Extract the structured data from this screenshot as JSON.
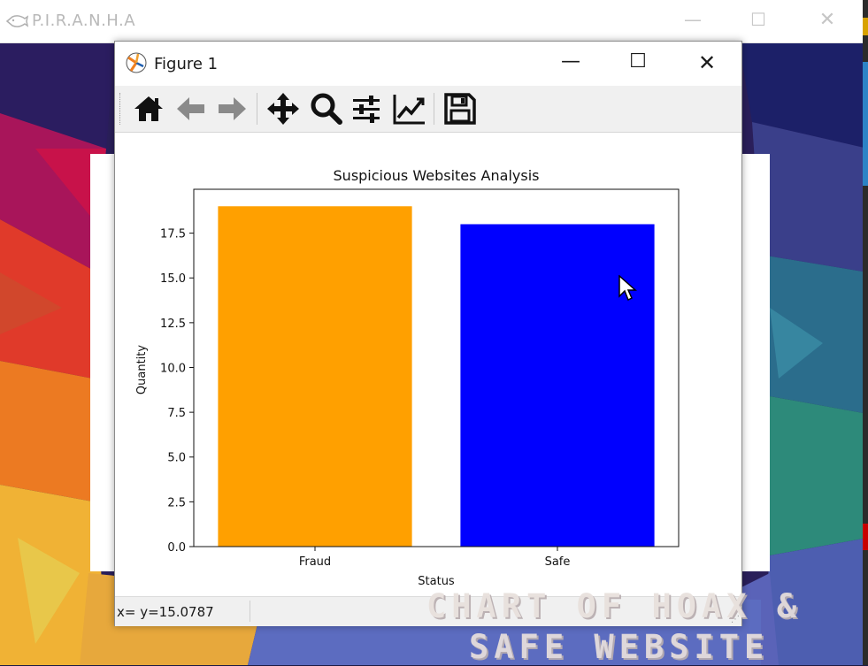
{
  "app": {
    "title": "P.I.R.A.N.H.A",
    "minimize_glyph": "—",
    "maximize_glyph": "☐",
    "close_glyph": "✕"
  },
  "figure_window": {
    "title": "Figure 1",
    "minimize_glyph": "—",
    "maximize_glyph": "☐",
    "close_glyph": "✕",
    "toolbar": [
      {
        "name": "home-icon",
        "tooltip": "Home"
      },
      {
        "name": "back-arrow-icon",
        "tooltip": "Back"
      },
      {
        "name": "forward-arrow-icon",
        "tooltip": "Forward"
      },
      {
        "name": "pan-icon",
        "tooltip": "Pan"
      },
      {
        "name": "zoom-icon",
        "tooltip": "Zoom"
      },
      {
        "name": "subplots-icon",
        "tooltip": "Subplots"
      },
      {
        "name": "edit-axis-icon",
        "tooltip": "Customize"
      },
      {
        "name": "save-icon",
        "tooltip": "Save"
      }
    ],
    "status": "x= y=15.0787"
  },
  "chart_data": {
    "type": "bar",
    "title": "Suspicious Websites Analysis",
    "xlabel": "Status",
    "ylabel": "Quantity",
    "categories": [
      "Fraud",
      "Safe"
    ],
    "values": [
      19,
      18
    ],
    "colors": [
      "#ffa000",
      "#0000ff"
    ],
    "ylim": [
      0,
      19.95
    ],
    "yticks": [
      0.0,
      2.5,
      5.0,
      7.5,
      10.0,
      12.5,
      15.0,
      17.5
    ],
    "ytick_labels": [
      "0.0",
      "2.5",
      "5.0",
      "7.5",
      "10.0",
      "12.5",
      "15.0",
      "17.5"
    ],
    "grid": false
  },
  "overlay": {
    "line1": "CHART OF HOAX &",
    "line2": "SAFE WEBSITE"
  }
}
